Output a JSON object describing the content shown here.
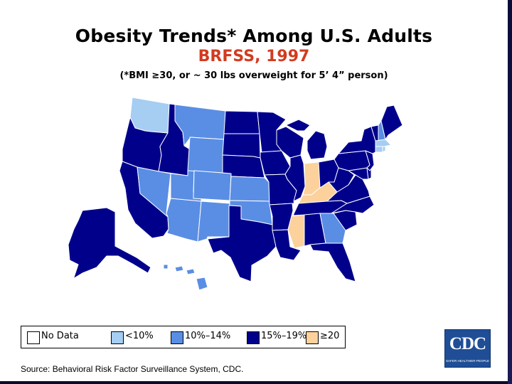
{
  "title": "Obesity Trends* Among U.S. Adults",
  "subtitle": "BRFSS, 1997",
  "note": "(*BMI ≥30, or ~ 30 lbs overweight for 5’ 4” person)",
  "legend": [
    {
      "label": "No Data",
      "color": "#ffffff"
    },
    {
      "label": "<10%",
      "color": "#a6cdf2"
    },
    {
      "label": "10%–14%",
      "color": "#5a8ee4"
    },
    {
      "label": "15%–19%",
      "color": "#00008b"
    },
    {
      "label": "≥20",
      "color": "#fcd19b"
    }
  ],
  "source": "Source: Behavioral Risk Factor Surveillance System, CDC.",
  "logo": {
    "text": "CDC",
    "tagline": "SAFER·HEALTHIER·PEOPLE"
  },
  "states": [
    {
      "name": "Washington",
      "category": "<10%"
    },
    {
      "name": "Oregon",
      "category": "15%–19%"
    },
    {
      "name": "California",
      "category": "15%–19%"
    },
    {
      "name": "Idaho",
      "category": "15%–19%"
    },
    {
      "name": "Nevada",
      "category": "10%–14%"
    },
    {
      "name": "Arizona",
      "category": "10%–14%"
    },
    {
      "name": "Utah",
      "category": "10%–14%"
    },
    {
      "name": "Montana",
      "category": "10%–14%"
    },
    {
      "name": "Wyoming",
      "category": "10%–14%"
    },
    {
      "name": "Colorado",
      "category": "10%–14%"
    },
    {
      "name": "New Mexico",
      "category": "10%–14%"
    },
    {
      "name": "North Dakota",
      "category": "15%–19%"
    },
    {
      "name": "South Dakota",
      "category": "15%–19%"
    },
    {
      "name": "Nebraska",
      "category": "15%–19%"
    },
    {
      "name": "Kansas",
      "category": "10%–14%"
    },
    {
      "name": "Oklahoma",
      "category": "10%–14%"
    },
    {
      "name": "Texas",
      "category": "15%–19%"
    },
    {
      "name": "Minnesota",
      "category": "15%–19%"
    },
    {
      "name": "Iowa",
      "category": "15%–19%"
    },
    {
      "name": "Missouri",
      "category": "15%–19%"
    },
    {
      "name": "Arkansas",
      "category": "15%–19%"
    },
    {
      "name": "Louisiana",
      "category": "15%–19%"
    },
    {
      "name": "Wisconsin",
      "category": "15%–19%"
    },
    {
      "name": "Illinois",
      "category": "15%–19%"
    },
    {
      "name": "Michigan",
      "category": "15%–19%"
    },
    {
      "name": "Indiana",
      "category": "≥20"
    },
    {
      "name": "Kentucky",
      "category": "≥20"
    },
    {
      "name": "Mississippi",
      "category": "≥20"
    },
    {
      "name": "Ohio",
      "category": "15%–19%"
    },
    {
      "name": "Tennessee",
      "category": "15%–19%"
    },
    {
      "name": "Alabama",
      "category": "15%–19%"
    },
    {
      "name": "Georgia",
      "category": "10%–14%"
    },
    {
      "name": "Florida",
      "category": "15%–19%"
    },
    {
      "name": "South Carolina",
      "category": "15%–19%"
    },
    {
      "name": "North Carolina",
      "category": "15%–19%"
    },
    {
      "name": "Virginia",
      "category": "15%–19%"
    },
    {
      "name": "West Virginia",
      "category": "15%–19%"
    },
    {
      "name": "Maryland",
      "category": "15%–19%"
    },
    {
      "name": "Delaware",
      "category": "15%–19%"
    },
    {
      "name": "Pennsylvania",
      "category": "15%–19%"
    },
    {
      "name": "New Jersey",
      "category": "15%–19%"
    },
    {
      "name": "New York",
      "category": "15%–19%"
    },
    {
      "name": "Connecticut",
      "category": "<10%"
    },
    {
      "name": "Rhode Island",
      "category": "<10%"
    },
    {
      "name": "Massachusetts",
      "category": "<10%"
    },
    {
      "name": "Vermont",
      "category": "15%–19%"
    },
    {
      "name": "New Hampshire",
      "category": "10%–14%"
    },
    {
      "name": "Maine",
      "category": "15%–19%"
    },
    {
      "name": "Alaska",
      "category": "15%–19%"
    },
    {
      "name": "Hawaii",
      "category": "10%–14%"
    }
  ]
}
